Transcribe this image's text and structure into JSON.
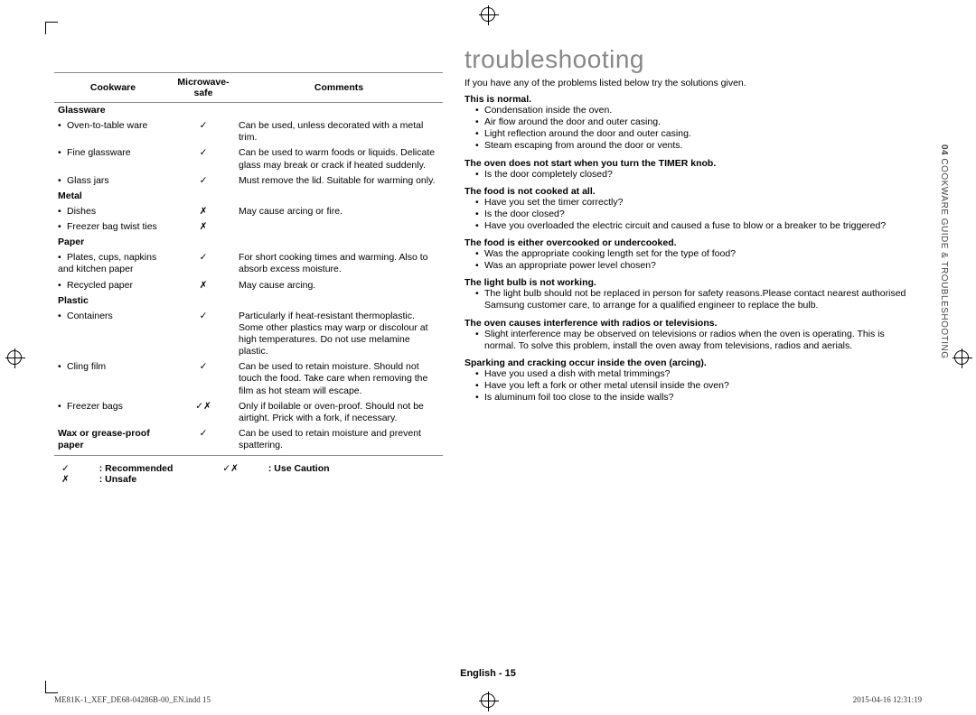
{
  "side_tab": {
    "num": "04",
    "text": "  COOKWARE GUIDE & TROUBLESHOOTING"
  },
  "table": {
    "headers": {
      "cookware": "Cookware",
      "safe": "Microwave-safe",
      "comments": "Comments"
    },
    "symbols": {
      "yes": "✓",
      "no": "✗",
      "caution": "✓✗"
    },
    "sections": [
      {
        "head": "Glassware",
        "rows": [
          {
            "item": "Oven-to-table ware",
            "safe": "yes",
            "comment": "Can be used, unless decorated with a metal trim."
          },
          {
            "item": "Fine glassware",
            "safe": "yes",
            "comment": "Can be used to warm foods or liquids. Delicate glass may break or crack if heated suddenly."
          },
          {
            "item": "Glass jars",
            "safe": "yes",
            "comment": "Must remove the lid. Suitable for warming only."
          }
        ]
      },
      {
        "head": "Metal",
        "rows": [
          {
            "item": "Dishes",
            "safe": "no",
            "comment": "May cause arcing or fire."
          },
          {
            "item": "Freezer bag twist ties",
            "safe": "no",
            "comment": ""
          }
        ]
      },
      {
        "head": "Paper",
        "rows": [
          {
            "item": "Plates, cups, napkins and kitchen paper",
            "safe": "yes",
            "comment": "For short cooking times and warming. Also to absorb excess moisture."
          },
          {
            "item": "Recycled paper",
            "safe": "no",
            "comment": "May cause arcing."
          }
        ]
      },
      {
        "head": "Plastic",
        "rows": [
          {
            "item": "Containers",
            "safe": "yes",
            "comment": "Particularly if heat-resistant thermoplastic. Some other plastics may warp or discolour at high temperatures. Do not use melamine plastic."
          },
          {
            "item": "Cling film",
            "safe": "yes",
            "comment": "Can be used to retain moisture. Should not touch the food. Take care when removing the film as hot steam will escape."
          },
          {
            "item": "Freezer bags",
            "safe": "caution",
            "comment": "Only if boilable or oven-proof. Should not be airtight. Prick with a fork, if necessary."
          }
        ]
      },
      {
        "head_row": true,
        "head": "Wax or grease-proof paper",
        "safe": "yes",
        "comment": "Can be used to retain moisture and prevent spattering."
      }
    ],
    "legend": {
      "rec": ": Recommended",
      "caution": ": Use Caution",
      "unsafe": ": Unsafe"
    }
  },
  "ts": {
    "title": "troubleshooting",
    "intro": "If you have any of the problems listed below try the solutions given.",
    "groups": [
      {
        "head": "This is normal.",
        "items": [
          "Condensation inside the oven.",
          "Air flow around the door and outer casing.",
          "Light reflection around the door and outer casing.",
          "Steam escaping from around the door or vents."
        ]
      },
      {
        "head": "The oven does not start when you turn the TIMER knob.",
        "items": [
          "Is the door completely closed?"
        ]
      },
      {
        "head": "The food is not cooked at all.",
        "items": [
          "Have you set the timer correctly?",
          "Is the door closed?",
          "Have you overloaded the electric circuit and caused a fuse to blow or a breaker to be triggered?"
        ]
      },
      {
        "head": "The food is either overcooked or undercooked.",
        "items": [
          "Was the appropriate cooking length set for the type of food?",
          "Was an appropriate power level chosen?"
        ]
      },
      {
        "head": "The light bulb is not working.",
        "items": [
          "The light bulb should not be replaced in person for safety reasons.Please contact nearest authorised Samsung customer care, to arrange for a qualified engineer to replace the bulb."
        ]
      },
      {
        "head": "The oven causes interference with radios or televisions.",
        "items": [
          "Slight interference may be observed on televisions or radios when the oven is operating. This is normal. To solve this problem, install the oven away from televisions, radios and aerials."
        ]
      },
      {
        "head": "Sparking and cracking occur inside the oven (arcing).",
        "items": [
          "Have you used a dish with metal trimmings?",
          "Have you left a fork or other metal utensil inside the oven?",
          "Is aluminum foil too close to the inside walls?"
        ]
      }
    ]
  },
  "footer": {
    "lang": "English - 15",
    "left": "ME81K-1_XEF_DE68-04286B-00_EN.indd   15",
    "right": "2015-04-16    12:31:19"
  }
}
